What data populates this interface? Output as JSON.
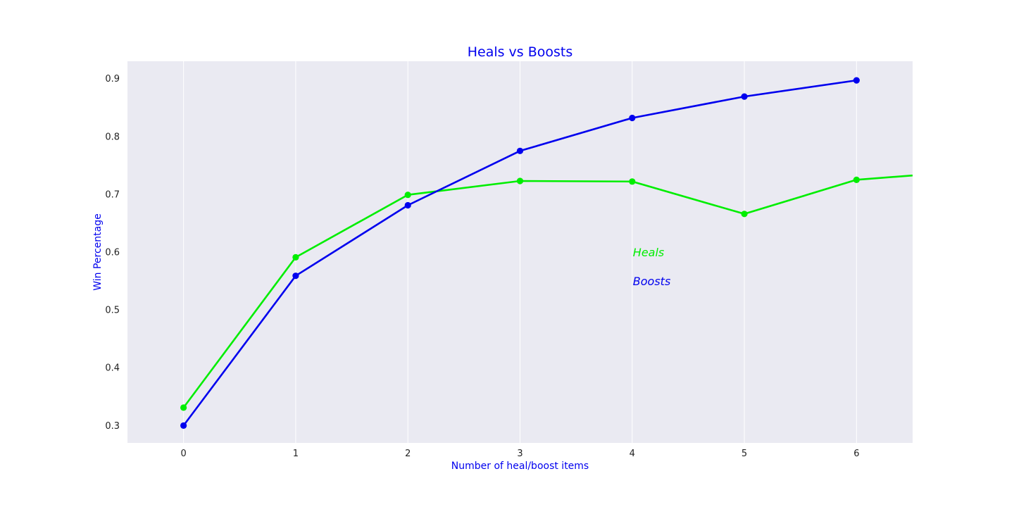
{
  "colors": {
    "heals": "#00ee00",
    "boosts": "#0000ee",
    "text_accent": "#0000ee",
    "plot_background": "#eaeaf2",
    "grid": "#ffffff"
  },
  "chart_data": {
    "type": "line",
    "title": "Heals vs Boosts",
    "xlabel": "Number of heal/boost items",
    "ylabel": "Win Percentage",
    "x_ticks": [
      "0",
      "1",
      "2",
      "3",
      "4",
      "5",
      "6"
    ],
    "y_ticks": [
      "0.3",
      "0.4",
      "0.5",
      "0.6",
      "0.7",
      "0.8",
      "0.9"
    ],
    "xlim": [
      -0.5,
      6.5
    ],
    "ylim": [
      0.27,
      0.93
    ],
    "grid": "vertical",
    "legend": "none",
    "series": [
      {
        "key": "heals",
        "x": [
          0,
          1,
          2,
          3,
          4,
          5,
          6,
          7
        ],
        "values": [
          0.331,
          0.591,
          0.699,
          0.723,
          0.722,
          0.666,
          0.725,
          0.74
        ],
        "marker_count": 7
      },
      {
        "key": "boosts",
        "x": [
          0,
          1,
          2,
          3,
          4,
          5,
          6
        ],
        "values": [
          0.3,
          0.559,
          0.681,
          0.775,
          0.832,
          0.869,
          0.897
        ],
        "marker_count": 7
      }
    ],
    "annotations": [
      {
        "text": "Heals",
        "x": 4,
        "y": 0.6,
        "color_key": "heals"
      },
      {
        "text": "Boosts",
        "x": 4,
        "y": 0.55,
        "color_key": "boosts"
      }
    ]
  }
}
